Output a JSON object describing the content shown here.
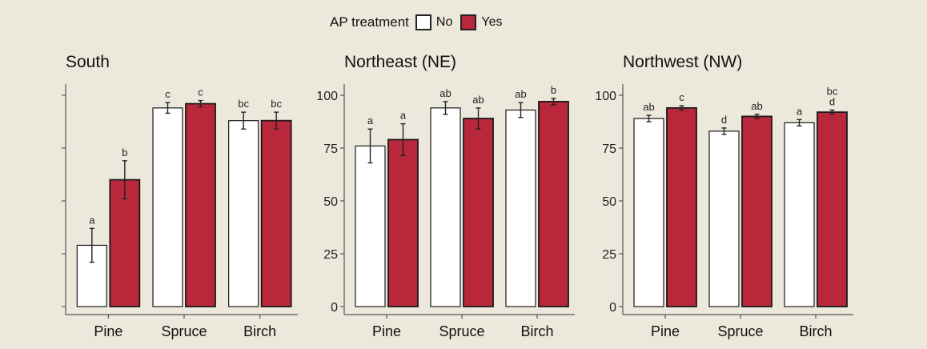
{
  "legend": {
    "title": "AP treatment",
    "items": [
      {
        "label": "No",
        "color": "#ffffff"
      },
      {
        "label": "Yes",
        "color": "#b8283a"
      }
    ]
  },
  "colors": {
    "no": "#ffffff",
    "yes": "#b8283a",
    "outline": "#1a1a1a",
    "axis": "#555555"
  },
  "chart_data": [
    {
      "type": "bar",
      "title": "South",
      "categories": [
        "Pine",
        "Spruce",
        "Birch"
      ],
      "ylim": [
        0,
        100
      ],
      "yticks": [
        0,
        25,
        50,
        75,
        100
      ],
      "show_tick_labels": false,
      "series": [
        {
          "name": "No",
          "values": [
            29,
            94,
            88
          ],
          "errors": [
            8,
            2.5,
            4
          ],
          "letters": [
            "a",
            "c",
            "bc"
          ]
        },
        {
          "name": "Yes",
          "values": [
            60,
            96,
            88
          ],
          "errors": [
            9,
            1.5,
            4
          ],
          "letters": [
            "b",
            "c",
            "bc"
          ]
        }
      ]
    },
    {
      "type": "bar",
      "title": "Northeast (NE)",
      "categories": [
        "Pine",
        "Spruce",
        "Birch"
      ],
      "ylim": [
        0,
        100
      ],
      "yticks": [
        0,
        25,
        50,
        75,
        100
      ],
      "show_tick_labels": true,
      "series": [
        {
          "name": "No",
          "values": [
            76,
            94,
            93
          ],
          "errors": [
            8,
            3,
            3.5
          ],
          "letters": [
            "a",
            "ab",
            "ab"
          ]
        },
        {
          "name": "Yes",
          "values": [
            79,
            89,
            97
          ],
          "errors": [
            7.5,
            5,
            1.5
          ],
          "letters": [
            "a",
            "ab",
            "b"
          ]
        }
      ]
    },
    {
      "type": "bar",
      "title": "Northwest (NW)",
      "categories": [
        "Pine",
        "Spruce",
        "Birch"
      ],
      "ylim": [
        0,
        100
      ],
      "yticks": [
        0,
        25,
        50,
        75,
        100
      ],
      "show_tick_labels": true,
      "series": [
        {
          "name": "No",
          "values": [
            89,
            83,
            87
          ],
          "errors": [
            1.5,
            1.5,
            1.5
          ],
          "letters": [
            "ab",
            "d",
            "a"
          ]
        },
        {
          "name": "Yes",
          "values": [
            94,
            90,
            92
          ],
          "errors": [
            1,
            1,
            1
          ],
          "letters": [
            "c",
            "ab",
            "d"
          ]
        }
      ],
      "extra_letters": [
        {
          "category": "Birch",
          "text": "bc"
        }
      ]
    }
  ]
}
